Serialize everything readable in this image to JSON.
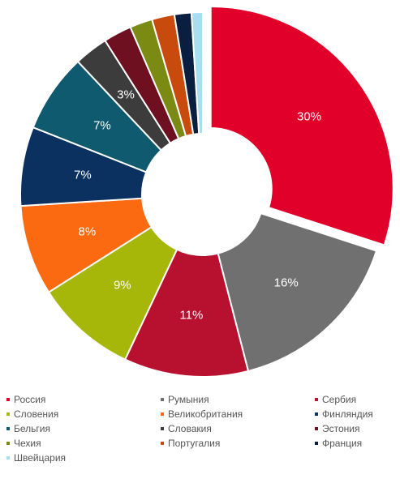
{
  "chart_data": {
    "type": "pie",
    "donut": true,
    "series": [
      {
        "name": "Россия",
        "value": 30,
        "color": "#e0002a",
        "label": "30%"
      },
      {
        "name": "Румыния",
        "value": 16,
        "color": "#707070",
        "label": "16%"
      },
      {
        "name": "Сербия",
        "value": 11,
        "color": "#b8102f",
        "label": "11%"
      },
      {
        "name": "Словения",
        "value": 9,
        "color": "#a6b70a",
        "label": "9%"
      },
      {
        "name": "Великобритания",
        "value": 8,
        "color": "#fb6a10",
        "label": "8%"
      },
      {
        "name": "Финляндия",
        "value": 7,
        "color": "#0b3160",
        "label": "7%"
      },
      {
        "name": "Бельгия",
        "value": 7,
        "color": "#0f5a6e",
        "label": "7%"
      },
      {
        "name": "Словакия",
        "value": 3,
        "color": "#3c3c3c",
        "label": "3%"
      },
      {
        "name": "Эстония",
        "value": 2.5,
        "color": "#6e1020",
        "label": ""
      },
      {
        "name": "Чехия",
        "value": 2,
        "color": "#7a8a12",
        "label": ""
      },
      {
        "name": "Португалия",
        "value": 2,
        "color": "#c84a0c",
        "label": ""
      },
      {
        "name": "Франция",
        "value": 1.5,
        "color": "#0a1f3f",
        "label": ""
      },
      {
        "name": "Швейцария",
        "value": 1,
        "color": "#a8dff0",
        "label": ""
      }
    ],
    "legend_position": "bottom",
    "exploded": [
      "Россия"
    ]
  }
}
